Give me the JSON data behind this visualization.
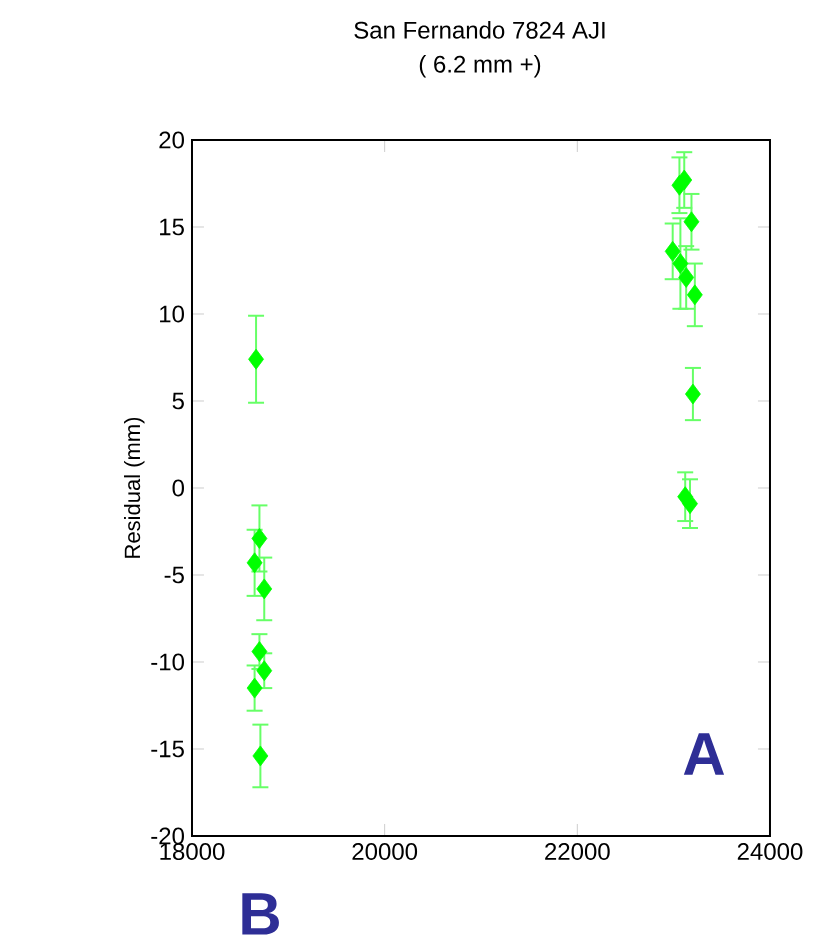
{
  "chart_data": {
    "type": "scatter",
    "title": "San Fernando 7824  AJI",
    "subtitle": "(  6.2 mm +)",
    "ylabel": "Residual (mm)",
    "annotations": [
      "A",
      "B"
    ],
    "x": [
      18665,
      18700,
      18650,
      18750,
      18700,
      18750,
      18650,
      18710,
      23060,
      23110,
      23185,
      22990,
      23070,
      23130,
      23220,
      23200,
      23120,
      23170
    ],
    "values": [
      7.4,
      -2.9,
      -4.3,
      -5.8,
      -9.4,
      -10.5,
      -11.5,
      -15.4,
      17.4,
      17.7,
      15.3,
      13.6,
      12.9,
      12.1,
      11.1,
      5.4,
      -0.5,
      -0.9
    ],
    "errors": [
      2.5,
      1.9,
      1.9,
      1.8,
      1.0,
      1.0,
      1.3,
      1.8,
      1.6,
      1.6,
      1.6,
      1.6,
      2.6,
      1.8,
      1.8,
      1.5,
      1.4,
      1.4
    ],
    "color": "#00ff00",
    "marker": "diamond",
    "grid": false,
    "xlim": [
      18000,
      24000
    ],
    "xticks": [
      18000,
      20000,
      22000,
      24000
    ],
    "ylim": [
      -20,
      20
    ],
    "yticks": [
      -20,
      -15,
      -10,
      -5,
      0,
      5,
      10,
      15,
      20
    ]
  }
}
